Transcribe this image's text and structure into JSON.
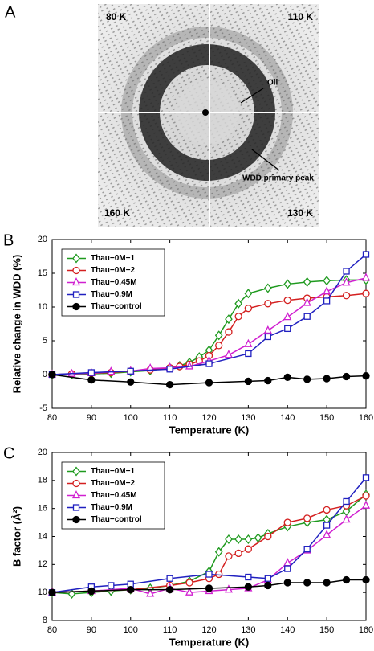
{
  "panel_a": {
    "label": "A",
    "corners": [
      "80 K",
      "110 K",
      "160 K",
      "130 K"
    ],
    "annotations": [
      "Oil",
      "WDD primary peak"
    ]
  },
  "chart_data": [
    {
      "type": "line",
      "label": "B",
      "x_label": "Temperature (K)",
      "y_label": "Relative change in WDD (%)",
      "xlim": [
        80,
        160
      ],
      "xticks": [
        80,
        90,
        100,
        110,
        120,
        130,
        140,
        150,
        160
      ],
      "ylim": [
        -5,
        20
      ],
      "yticks": [
        -5,
        0,
        5,
        10,
        15,
        20
      ],
      "legend": "upper-left",
      "series": [
        {
          "name": "Thau−0M−1",
          "color": "#1f9a1f",
          "marker": "diamond",
          "x": [
            80,
            85,
            90,
            95,
            100,
            105,
            110,
            112.5,
            115,
            117.5,
            120,
            122.5,
            125,
            127.5,
            130,
            135,
            140,
            145,
            150,
            155,
            160
          ],
          "values": [
            0,
            0,
            0.1,
            0.2,
            0.4,
            0.6,
            1.0,
            1.3,
            1.8,
            2.6,
            3.6,
            5.8,
            8.2,
            10.5,
            12.0,
            12.8,
            13.4,
            13.7,
            13.9,
            14.0,
            14.0
          ]
        },
        {
          "name": "Thau−0M−2",
          "color": "#d42020",
          "marker": "circle",
          "x": [
            80,
            85,
            90,
            95,
            100,
            105,
            110,
            112.5,
            115,
            117.5,
            120,
            122.5,
            125,
            127.5,
            130,
            135,
            140,
            145,
            150,
            155,
            160
          ],
          "values": [
            0,
            0.1,
            0.2,
            0.3,
            0.5,
            0.7,
            1.0,
            1.2,
            1.5,
            2.0,
            2.8,
            4.3,
            6.3,
            8.6,
            9.8,
            10.5,
            11.0,
            11.3,
            11.5,
            11.7,
            12.0
          ]
        },
        {
          "name": "Thau−0.45M",
          "color": "#d020d0",
          "marker": "triangle",
          "x": [
            80,
            85,
            90,
            95,
            100,
            105,
            110,
            115,
            120,
            125,
            130,
            135,
            140,
            145,
            150,
            155,
            160
          ],
          "values": [
            0,
            0.1,
            0.2,
            0.4,
            0.5,
            0.9,
            1.0,
            1.2,
            2.0,
            2.9,
            4.5,
            6.5,
            8.5,
            10.6,
            12.3,
            13.6,
            14.3
          ]
        },
        {
          "name": "Thau−0.9M",
          "color": "#2020c0",
          "marker": "square",
          "x": [
            80,
            90,
            100,
            110,
            120,
            130,
            135,
            140,
            145,
            150,
            155,
            160
          ],
          "values": [
            0,
            0.3,
            0.5,
            0.8,
            1.6,
            3.1,
            5.6,
            6.8,
            8.6,
            10.9,
            15.3,
            17.8
          ]
        },
        {
          "name": "Thau−control",
          "color": "#000000",
          "marker": "filled-circle",
          "x": [
            80,
            90,
            100,
            110,
            120,
            130,
            135,
            140,
            145,
            150,
            155,
            160
          ],
          "values": [
            0,
            -0.8,
            -1.1,
            -1.5,
            -1.2,
            -1.0,
            -0.9,
            -0.4,
            -0.7,
            -0.6,
            -0.3,
            -0.2
          ]
        }
      ]
    },
    {
      "type": "line",
      "label": "C",
      "x_label": "Temperature (K)",
      "y_label": "B factor (Å²)",
      "xlim": [
        80,
        160
      ],
      "xticks": [
        80,
        90,
        100,
        110,
        120,
        130,
        140,
        150,
        160
      ],
      "ylim": [
        8,
        20
      ],
      "yticks": [
        8,
        10,
        12,
        14,
        16,
        18,
        20
      ],
      "legend": "upper-left",
      "series": [
        {
          "name": "Thau−0M−1",
          "color": "#1f9a1f",
          "marker": "diamond",
          "x": [
            80,
            85,
            90,
            95,
            100,
            105,
            110,
            115,
            120,
            122.5,
            125,
            127.5,
            130,
            132.5,
            135,
            140,
            145,
            150,
            155,
            160
          ],
          "values": [
            10,
            9.9,
            10,
            10.1,
            10.2,
            10.3,
            10.5,
            10.8,
            11.5,
            12.9,
            13.8,
            13.8,
            13.8,
            13.9,
            14.2,
            14.7,
            15.0,
            15.2,
            15.8,
            17.0
          ]
        },
        {
          "name": "Thau−0M−2",
          "color": "#d42020",
          "marker": "circle",
          "x": [
            80,
            90,
            100,
            110,
            115,
            120,
            122.5,
            125,
            127.5,
            130,
            135,
            140,
            145,
            150,
            155,
            160
          ],
          "values": [
            10,
            10.1,
            10.2,
            10.5,
            10.7,
            11.0,
            11.3,
            12.6,
            12.8,
            13.1,
            14.0,
            15.0,
            15.3,
            15.9,
            16.2,
            16.9
          ]
        },
        {
          "name": "Thau−0.45M",
          "color": "#d020d0",
          "marker": "triangle",
          "x": [
            80,
            90,
            100,
            105,
            110,
            115,
            120,
            125,
            130,
            135,
            140,
            145,
            150,
            155,
            160
          ],
          "values": [
            10,
            10.1,
            10.3,
            9.9,
            10.3,
            10.0,
            10.1,
            10.2,
            10.3,
            10.9,
            12.1,
            13.0,
            14.1,
            15.2,
            16.2
          ]
        },
        {
          "name": "Thau−0.9M",
          "color": "#2020c0",
          "marker": "square",
          "x": [
            80,
            90,
            95,
            100,
            110,
            120,
            130,
            135,
            140,
            145,
            150,
            155,
            160
          ],
          "values": [
            10,
            10.4,
            10.5,
            10.6,
            11.0,
            11.3,
            11.1,
            11.0,
            11.7,
            13.1,
            14.8,
            16.5,
            18.2
          ]
        },
        {
          "name": "Thau−control",
          "color": "#000000",
          "marker": "filled-circle",
          "x": [
            80,
            90,
            100,
            110,
            120,
            130,
            135,
            140,
            145,
            150,
            155,
            160
          ],
          "values": [
            10,
            10.1,
            10.2,
            10.2,
            10.3,
            10.4,
            10.5,
            10.7,
            10.7,
            10.7,
            10.9,
            10.9
          ]
        }
      ]
    }
  ]
}
